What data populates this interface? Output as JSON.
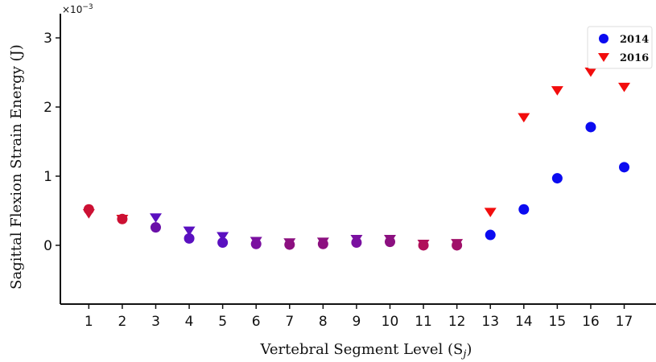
{
  "chart_data": {
    "type": "scatter",
    "title": "",
    "xlabel": "Vertebral Segment Level (S",
    "xlabel_sub": "j",
    "xlabel_close": ")",
    "ylabel": "Sagittal Flexion Strain Energy (J)",
    "y_exponent_base": "×10",
    "y_exponent_power": "−3",
    "x": [
      1,
      2,
      3,
      4,
      5,
      6,
      7,
      8,
      9,
      10,
      11,
      12,
      13,
      14,
      15,
      16,
      17
    ],
    "x_tick_labels": [
      "1",
      "2",
      "3",
      "4",
      "5",
      "6",
      "7",
      "8",
      "9",
      "10",
      "11",
      "12",
      "13",
      "14",
      "15",
      "16",
      "17"
    ],
    "xlim": [
      0.15,
      17.95
    ],
    "ylim": [
      -0.85,
      3.35
    ],
    "y_ticks": [
      0,
      1,
      2,
      3
    ],
    "y_tick_labels": [
      "0",
      "1",
      "2",
      "3"
    ],
    "grid": false,
    "legend_position": "top-right",
    "series": [
      {
        "name": "2014",
        "marker": "circle",
        "color": "#0b0bf0",
        "values": [
          0.52,
          0.38,
          0.26,
          0.1,
          0.04,
          0.02,
          0.01,
          0.02,
          0.04,
          0.05,
          0.0,
          0.0,
          0.15,
          0.52,
          0.97,
          1.71,
          1.13
        ]
      },
      {
        "name": "2016",
        "marker": "triangle-down",
        "color": "#f20d0d",
        "values": [
          0.46,
          0.38,
          0.4,
          0.21,
          0.13,
          0.06,
          0.04,
          0.05,
          0.09,
          0.09,
          0.02,
          0.03,
          0.48,
          1.85,
          2.24,
          2.51,
          2.29
        ]
      }
    ],
    "overlap_blend": {
      "max_x": 12,
      "circle_colors": [
        "#cc1033",
        "#cc1033",
        "#6a10a8",
        "#5a10c0",
        "#5a10c0",
        "#7a10a0",
        "#8c1080",
        "#8c1080",
        "#7a10a0",
        "#8c1080",
        "#b0105a",
        "#a0106a"
      ],
      "triangle_colors": [
        "#cc1033",
        "#e0101f",
        "#5a10c0",
        "#5a10c0",
        "#5a10c0",
        "#7a10a0",
        "#8c1080",
        "#8c1080",
        "#7a10a0",
        "#8c1080",
        "#b0105a",
        "#a0106a"
      ]
    }
  }
}
